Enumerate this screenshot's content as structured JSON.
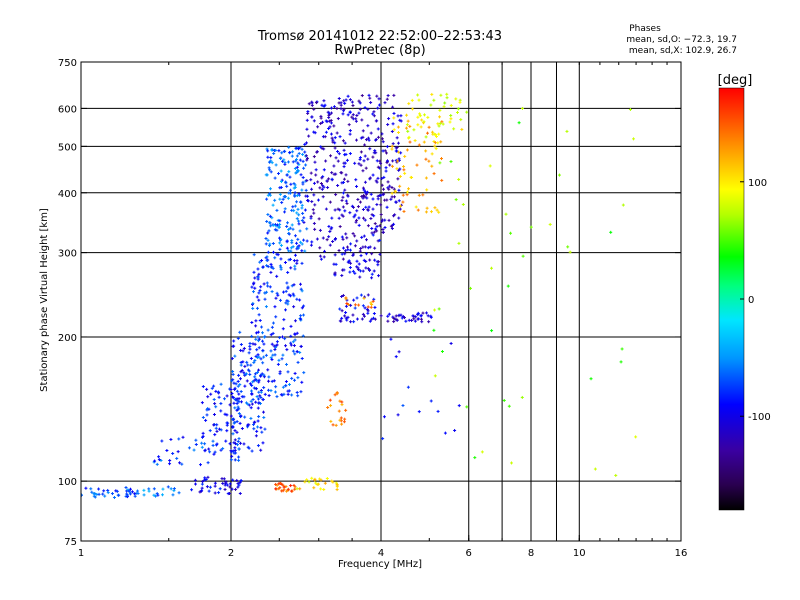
{
  "chart_data": {
    "type": "scatter",
    "title": "Tromsø 20141012 22:52:00–22:53:43",
    "subtitle": "RwPretec (8p)",
    "xlabel": "Frequency [MHz]",
    "ylabel": "Stationary phase Virtual Height [km]",
    "x_scale": "log2",
    "y_scale": "log",
    "xlim": [
      1,
      16
    ],
    "ylim": [
      75,
      750
    ],
    "x_ticks": [
      1,
      2,
      4,
      6,
      8,
      10,
      16
    ],
    "x_gridlines": [
      2,
      4,
      6,
      7,
      8,
      9,
      10
    ],
    "y_ticks": [
      75,
      100,
      200,
      300,
      400,
      500,
      600,
      750
    ],
    "y_gridlines": [
      100,
      200,
      300,
      400,
      500,
      600
    ],
    "grid": true,
    "stats": {
      "heading": "Phases",
      "line_o": "mean, sd,O: −72.3, 19.7",
      "line_x": "mean, sd,X: 102.9, 26.7"
    },
    "colorbar": {
      "label": "[deg]",
      "range": [
        -180,
        180
      ],
      "ticks": [
        100,
        0,
        -100
      ],
      "colormap": "rainbow"
    },
    "clusters": [
      {
        "fmin": 1.0,
        "fmax": 1.3,
        "hmin": 92,
        "hmax": 97,
        "phase": -70,
        "n": 40
      },
      {
        "fmin": 1.3,
        "fmax": 1.65,
        "hmin": 93,
        "hmax": 98,
        "phase": -60,
        "n": 18
      },
      {
        "fmin": 1.65,
        "fmax": 2.1,
        "hmin": 94,
        "hmax": 102,
        "phase": -100,
        "n": 45
      },
      {
        "fmin": 1.4,
        "fmax": 1.85,
        "hmin": 108,
        "hmax": 125,
        "phase": -75,
        "n": 30
      },
      {
        "fmin": 1.75,
        "fmax": 2.1,
        "hmin": 110,
        "hmax": 160,
        "phase": -85,
        "n": 90
      },
      {
        "fmin": 2.0,
        "fmax": 2.35,
        "hmin": 115,
        "hmax": 205,
        "phase": -80,
        "n": 150
      },
      {
        "fmin": 2.2,
        "fmax": 2.8,
        "hmin": 150,
        "hmax": 300,
        "phase": -78,
        "n": 220
      },
      {
        "fmin": 2.35,
        "fmax": 2.85,
        "hmin": 300,
        "hmax": 500,
        "phase": -65,
        "n": 200
      },
      {
        "fmin": 2.8,
        "fmax": 3.2,
        "hmin": 290,
        "hmax": 630,
        "phase": -110,
        "n": 120
      },
      {
        "fmin": 3.2,
        "fmax": 4.4,
        "hmin": 330,
        "hmax": 640,
        "phase": -112,
        "n": 280
      },
      {
        "fmin": 3.2,
        "fmax": 4.0,
        "hmin": 265,
        "hmax": 330,
        "phase": -105,
        "n": 80
      },
      {
        "fmin": 3.3,
        "fmax": 3.9,
        "hmin": 215,
        "hmax": 245,
        "phase": -100,
        "n": 40
      },
      {
        "fmin": 4.0,
        "fmax": 5.1,
        "hmin": 215,
        "hmax": 225,
        "phase": -110,
        "n": 40
      },
      {
        "fmin": 4.2,
        "fmax": 5.3,
        "hmin": 360,
        "hmax": 580,
        "phase": 120,
        "n": 70
      },
      {
        "fmin": 4.5,
        "fmax": 6.0,
        "hmin": 520,
        "hmax": 650,
        "phase": 90,
        "n": 50
      },
      {
        "fmin": 2.45,
        "fmax": 2.7,
        "hmin": 95,
        "hmax": 99,
        "phase": 150,
        "n": 25
      },
      {
        "fmin": 2.7,
        "fmax": 3.3,
        "hmin": 96,
        "hmax": 102,
        "phase": 100,
        "n": 25
      },
      {
        "fmin": 3.1,
        "fmax": 3.4,
        "hmin": 130,
        "hmax": 155,
        "phase": 140,
        "n": 20
      },
      {
        "fmin": 3.4,
        "fmax": 3.9,
        "hmin": 230,
        "hmax": 242,
        "phase": 135,
        "n": 12
      },
      {
        "fmin": 5.0,
        "fmax": 13.0,
        "hmin": 95,
        "hmax": 650,
        "phase": 60,
        "n": 45
      },
      {
        "fmin": 4.0,
        "fmax": 6.0,
        "hmin": 120,
        "hmax": 200,
        "phase": -90,
        "n": 15
      }
    ]
  }
}
